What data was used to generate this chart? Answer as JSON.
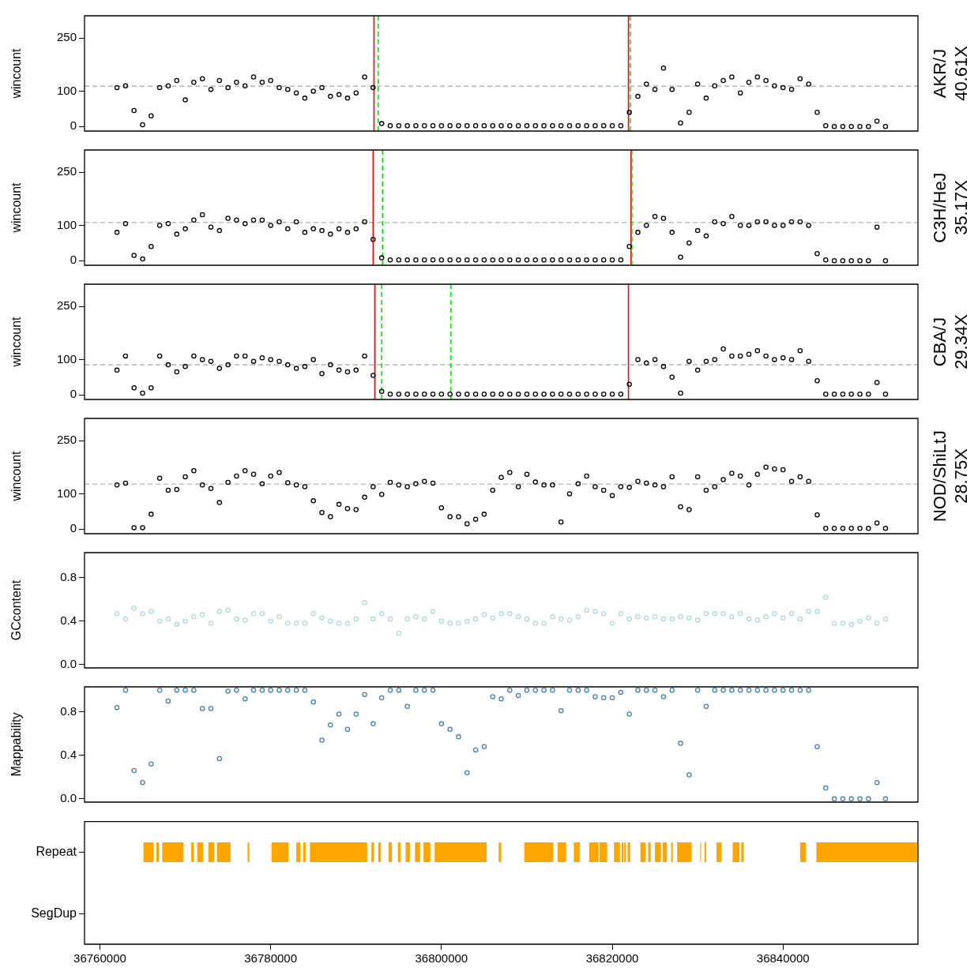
{
  "chart_data": [
    {
      "type": "scatter",
      "ylabel": "wincount",
      "y2label": "AKR/J\n40.61X",
      "color": "#000000",
      "marker": "circle",
      "tick_labels": "y",
      "xlim": [
        36758200,
        36855800
      ],
      "ylim": [
        -13,
        313
      ],
      "yticks": [
        0,
        100,
        250
      ],
      "x": [
        36762000,
        36763000,
        36764000,
        36765000,
        36766000,
        36767000,
        36768000,
        36769000,
        36770000,
        36771000,
        36772000,
        36773000,
        36774000,
        36775000,
        36776000,
        36777000,
        36778000,
        36779000,
        36780000,
        36781000,
        36782000,
        36783000,
        36784000,
        36785000,
        36786000,
        36787000,
        36788000,
        36789000,
        36790000,
        36791000,
        36792000,
        36793000,
        36794000,
        36795000,
        36796000,
        36797000,
        36798000,
        36799000,
        36800000,
        36801000,
        36802000,
        36803000,
        36804000,
        36805000,
        36806000,
        36807000,
        36808000,
        36809000,
        36810000,
        36811000,
        36812000,
        36813000,
        36814000,
        36815000,
        36816000,
        36817000,
        36818000,
        36819000,
        36820000,
        36821000,
        36822000,
        36823000,
        36824000,
        36825000,
        36826000,
        36827000,
        36828000,
        36829000,
        36830000,
        36831000,
        36832000,
        36833000,
        36834000,
        36835000,
        36836000,
        36837000,
        36838000,
        36839000,
        36840000,
        36841000,
        36842000,
        36843000,
        36844000,
        36845000,
        36846000,
        36847000,
        36848000,
        36849000,
        36850000,
        36851000,
        36852000
      ],
      "values": [
        110,
        115,
        45,
        5,
        30,
        110,
        115,
        130,
        75,
        125,
        135,
        105,
        130,
        110,
        125,
        115,
        140,
        125,
        130,
        110,
        105,
        95,
        80,
        100,
        110,
        85,
        90,
        80,
        95,
        140,
        110,
        8,
        2,
        2,
        2,
        2,
        2,
        2,
        2,
        2,
        2,
        2,
        2,
        2,
        2,
        2,
        2,
        2,
        2,
        2,
        2,
        2,
        2,
        2,
        2,
        2,
        2,
        2,
        2,
        2,
        40,
        85,
        120,
        105,
        165,
        105,
        10,
        40,
        120,
        80,
        115,
        130,
        140,
        95,
        125,
        140,
        130,
        115,
        110,
        105,
        135,
        120,
        40,
        2,
        0,
        0,
        0,
        0,
        0,
        15,
        0
      ],
      "ref_lines": [
        {
          "axis": "y",
          "value": 114,
          "color": "#bebebe",
          "line_style": "dashed"
        },
        {
          "axis": "x",
          "value": 36792100,
          "color": "#ff0000",
          "line_style": "solid"
        },
        {
          "axis": "x",
          "value": 36821900,
          "color": "#ff0000",
          "line_style": "solid"
        },
        {
          "axis": "x",
          "value": 36792600,
          "color": "#00ee00",
          "line_style": "dashed"
        },
        {
          "axis": "x",
          "value": 36822100,
          "color": "#00ee00",
          "line_style": "dashed"
        }
      ]
    },
    {
      "type": "scatter",
      "ylabel": "wincount",
      "y2label": "C3H/HeJ\n35.17X",
      "color": "#000000",
      "marker": "circle",
      "tick_labels": "y",
      "xlim": [
        36758200,
        36855800
      ],
      "ylim": [
        -13,
        313
      ],
      "yticks": [
        0,
        100,
        250
      ],
      "x": [
        36762000,
        36763000,
        36764000,
        36765000,
        36766000,
        36767000,
        36768000,
        36769000,
        36770000,
        36771000,
        36772000,
        36773000,
        36774000,
        36775000,
        36776000,
        36777000,
        36778000,
        36779000,
        36780000,
        36781000,
        36782000,
        36783000,
        36784000,
        36785000,
        36786000,
        36787000,
        36788000,
        36789000,
        36790000,
        36791000,
        36792000,
        36793000,
        36794000,
        36795000,
        36796000,
        36797000,
        36798000,
        36799000,
        36800000,
        36801000,
        36802000,
        36803000,
        36804000,
        36805000,
        36806000,
        36807000,
        36808000,
        36809000,
        36810000,
        36811000,
        36812000,
        36813000,
        36814000,
        36815000,
        36816000,
        36817000,
        36818000,
        36819000,
        36820000,
        36821000,
        36822000,
        36823000,
        36824000,
        36825000,
        36826000,
        36827000,
        36828000,
        36829000,
        36830000,
        36831000,
        36832000,
        36833000,
        36834000,
        36835000,
        36836000,
        36837000,
        36838000,
        36839000,
        36840000,
        36841000,
        36842000,
        36843000,
        36844000,
        36845000,
        36846000,
        36847000,
        36848000,
        36849000,
        36850000,
        36851000,
        36852000
      ],
      "values": [
        80,
        105,
        15,
        5,
        40,
        100,
        105,
        75,
        90,
        115,
        130,
        95,
        85,
        120,
        115,
        105,
        115,
        115,
        100,
        110,
        90,
        110,
        80,
        90,
        85,
        75,
        90,
        80,
        90,
        110,
        60,
        8,
        2,
        2,
        2,
        2,
        2,
        2,
        2,
        2,
        2,
        2,
        2,
        2,
        2,
        2,
        2,
        2,
        2,
        2,
        2,
        2,
        2,
        2,
        2,
        2,
        2,
        2,
        2,
        2,
        40,
        80,
        100,
        125,
        120,
        80,
        10,
        50,
        85,
        70,
        110,
        105,
        125,
        100,
        100,
        110,
        110,
        100,
        100,
        110,
        110,
        100,
        20,
        2,
        0,
        0,
        0,
        0,
        0,
        95,
        0
      ],
      "ref_lines": [
        {
          "axis": "y",
          "value": 108,
          "color": "#bebebe",
          "line_style": "dashed"
        },
        {
          "axis": "x",
          "value": 36792000,
          "color": "#ff0000",
          "line_style": "solid"
        },
        {
          "axis": "x",
          "value": 36822200,
          "color": "#ff0000",
          "line_style": "solid"
        },
        {
          "axis": "x",
          "value": 36793100,
          "color": "#00ee00",
          "line_style": "dashed"
        },
        {
          "axis": "x",
          "value": 36822300,
          "color": "#00ee00",
          "line_style": "dashed"
        }
      ]
    },
    {
      "type": "scatter",
      "ylabel": "wincount",
      "y2label": "CBA/J\n29.34X",
      "color": "#000000",
      "marker": "circle",
      "tick_labels": "y",
      "xlim": [
        36758200,
        36855800
      ],
      "ylim": [
        -13,
        313
      ],
      "yticks": [
        0,
        100,
        250
      ],
      "x": [
        36762000,
        36763000,
        36764000,
        36765000,
        36766000,
        36767000,
        36768000,
        36769000,
        36770000,
        36771000,
        36772000,
        36773000,
        36774000,
        36775000,
        36776000,
        36777000,
        36778000,
        36779000,
        36780000,
        36781000,
        36782000,
        36783000,
        36784000,
        36785000,
        36786000,
        36787000,
        36788000,
        36789000,
        36790000,
        36791000,
        36792000,
        36793000,
        36794000,
        36795000,
        36796000,
        36797000,
        36798000,
        36799000,
        36800000,
        36801000,
        36802000,
        36803000,
        36804000,
        36805000,
        36806000,
        36807000,
        36808000,
        36809000,
        36810000,
        36811000,
        36812000,
        36813000,
        36814000,
        36815000,
        36816000,
        36817000,
        36818000,
        36819000,
        36820000,
        36821000,
        36822000,
        36823000,
        36824000,
        36825000,
        36826000,
        36827000,
        36828000,
        36829000,
        36830000,
        36831000,
        36832000,
        36833000,
        36834000,
        36835000,
        36836000,
        36837000,
        36838000,
        36839000,
        36840000,
        36841000,
        36842000,
        36843000,
        36844000,
        36845000,
        36846000,
        36847000,
        36848000,
        36849000,
        36850000,
        36851000,
        36852000
      ],
      "values": [
        70,
        110,
        20,
        5,
        20,
        110,
        85,
        65,
        80,
        110,
        100,
        95,
        75,
        85,
        110,
        110,
        95,
        105,
        100,
        95,
        85,
        75,
        80,
        100,
        60,
        85,
        70,
        65,
        70,
        110,
        55,
        10,
        2,
        2,
        2,
        2,
        2,
        2,
        2,
        2,
        2,
        2,
        2,
        2,
        2,
        2,
        2,
        2,
        2,
        2,
        2,
        2,
        2,
        2,
        2,
        2,
        2,
        2,
        2,
        2,
        30,
        100,
        90,
        100,
        80,
        50,
        5,
        95,
        70,
        95,
        100,
        130,
        110,
        110,
        115,
        125,
        110,
        100,
        105,
        100,
        125,
        95,
        40,
        2,
        2,
        2,
        2,
        2,
        2,
        35,
        2
      ],
      "ref_lines": [
        {
          "axis": "y",
          "value": 85,
          "color": "#bebebe",
          "line_style": "dashed"
        },
        {
          "axis": "x",
          "value": 36792200,
          "color": "#ff0000",
          "line_style": "solid"
        },
        {
          "axis": "x",
          "value": 36821900,
          "color": "#ff0000",
          "line_style": "solid"
        },
        {
          "axis": "x",
          "value": 36793000,
          "color": "#00ee00",
          "line_style": "dashed"
        },
        {
          "axis": "x",
          "value": 36801100,
          "color": "#00ee00",
          "line_style": "dashed"
        }
      ]
    },
    {
      "type": "scatter",
      "ylabel": "wincount",
      "y2label": "NOD/ShiLtJ\n28.75X",
      "color": "#000000",
      "marker": "circle",
      "tick_labels": "y",
      "xlim": [
        36758200,
        36855800
      ],
      "ylim": [
        -13,
        313
      ],
      "yticks": [
        0,
        100,
        250
      ],
      "x": [
        36762000,
        36763000,
        36764000,
        36765000,
        36766000,
        36767000,
        36768000,
        36769000,
        36770000,
        36771000,
        36772000,
        36773000,
        36774000,
        36775000,
        36776000,
        36777000,
        36778000,
        36779000,
        36780000,
        36781000,
        36782000,
        36783000,
        36784000,
        36785000,
        36786000,
        36787000,
        36788000,
        36789000,
        36790000,
        36791000,
        36792000,
        36793000,
        36794000,
        36795000,
        36796000,
        36797000,
        36798000,
        36799000,
        36800000,
        36801000,
        36802000,
        36803000,
        36804000,
        36805000,
        36806000,
        36807000,
        36808000,
        36809000,
        36810000,
        36811000,
        36812000,
        36813000,
        36814000,
        36815000,
        36816000,
        36817000,
        36818000,
        36819000,
        36820000,
        36821000,
        36822000,
        36823000,
        36824000,
        36825000,
        36826000,
        36827000,
        36828000,
        36829000,
        36830000,
        36831000,
        36832000,
        36833000,
        36834000,
        36835000,
        36836000,
        36837000,
        36838000,
        36839000,
        36840000,
        36841000,
        36842000,
        36843000,
        36844000,
        36845000,
        36846000,
        36847000,
        36848000,
        36849000,
        36850000,
        36851000,
        36852000
      ],
      "values": [
        125,
        130,
        4,
        4,
        42,
        144,
        110,
        112,
        148,
        165,
        125,
        115,
        75,
        132,
        150,
        165,
        155,
        128,
        150,
        160,
        131,
        125,
        120,
        80,
        47,
        35,
        70,
        58,
        55,
        90,
        120,
        98,
        132,
        125,
        120,
        128,
        135,
        130,
        60,
        35,
        35,
        15,
        28,
        42,
        110,
        146,
        160,
        120,
        155,
        133,
        125,
        125,
        20,
        100,
        128,
        150,
        120,
        110,
        95,
        120,
        118,
        135,
        130,
        125,
        120,
        148,
        63,
        55,
        148,
        110,
        120,
        140,
        158,
        150,
        125,
        155,
        175,
        170,
        168,
        135,
        148,
        135,
        40,
        2,
        2,
        2,
        2,
        2,
        2,
        17,
        2
      ],
      "ref_lines": [
        {
          "axis": "y",
          "value": 127,
          "color": "#bebebe",
          "line_style": "dashed"
        }
      ]
    },
    {
      "type": "scatter",
      "ylabel": "GCcontent",
      "color": "#add8e6",
      "marker": "circle",
      "tick_labels": "y",
      "xlim": [
        36758200,
        36855800
      ],
      "ylim": [
        -0.03,
        1.03
      ],
      "yticks": [
        {
          "value": 0,
          "label": "0.0"
        },
        {
          "value": 0.4,
          "label": "0.4"
        },
        {
          "value": 0.8,
          "label": "0.8"
        }
      ],
      "x": [
        36762000,
        36763000,
        36764000,
        36765000,
        36766000,
        36767000,
        36768000,
        36769000,
        36770000,
        36771000,
        36772000,
        36773000,
        36774000,
        36775000,
        36776000,
        36777000,
        36778000,
        36779000,
        36780000,
        36781000,
        36782000,
        36783000,
        36784000,
        36785000,
        36786000,
        36787000,
        36788000,
        36789000,
        36790000,
        36791000,
        36792000,
        36793000,
        36794000,
        36795000,
        36796000,
        36797000,
        36798000,
        36799000,
        36800000,
        36801000,
        36802000,
        36803000,
        36804000,
        36805000,
        36806000,
        36807000,
        36808000,
        36809000,
        36810000,
        36811000,
        36812000,
        36813000,
        36814000,
        36815000,
        36816000,
        36817000,
        36818000,
        36819000,
        36820000,
        36821000,
        36822000,
        36823000,
        36824000,
        36825000,
        36826000,
        36827000,
        36828000,
        36829000,
        36830000,
        36831000,
        36832000,
        36833000,
        36834000,
        36835000,
        36836000,
        36837000,
        36838000,
        36839000,
        36840000,
        36841000,
        36842000,
        36843000,
        36844000,
        36845000,
        36846000,
        36847000,
        36848000,
        36849000,
        36850000,
        36851000,
        36852000
      ],
      "values": [
        0.47,
        0.42,
        0.52,
        0.47,
        0.49,
        0.4,
        0.42,
        0.37,
        0.4,
        0.44,
        0.46,
        0.38,
        0.49,
        0.5,
        0.42,
        0.41,
        0.47,
        0.47,
        0.4,
        0.44,
        0.38,
        0.38,
        0.38,
        0.47,
        0.43,
        0.4,
        0.38,
        0.38,
        0.42,
        0.57,
        0.42,
        0.47,
        0.42,
        0.29,
        0.42,
        0.44,
        0.42,
        0.49,
        0.4,
        0.38,
        0.38,
        0.4,
        0.42,
        0.46,
        0.43,
        0.47,
        0.47,
        0.44,
        0.42,
        0.38,
        0.38,
        0.44,
        0.42,
        0.41,
        0.44,
        0.5,
        0.49,
        0.47,
        0.38,
        0.47,
        0.42,
        0.44,
        0.43,
        0.44,
        0.42,
        0.42,
        0.44,
        0.43,
        0.41,
        0.47,
        0.47,
        0.47,
        0.44,
        0.47,
        0.42,
        0.41,
        0.44,
        0.47,
        0.43,
        0.47,
        0.42,
        0.49,
        0.49,
        0.62,
        0.38,
        0.38,
        0.37,
        0.4,
        0.43,
        0.38,
        0.42
      ]
    },
    {
      "type": "scatter",
      "ylabel": "Mappability",
      "color": "#4682b4",
      "marker": "circle",
      "tick_labels": "y",
      "xlim": [
        36758200,
        36855800
      ],
      "ylim": [
        -0.03,
        1.03
      ],
      "yticks": [
        {
          "value": 0,
          "label": "0.0"
        },
        {
          "value": 0.4,
          "label": "0.4"
        },
        {
          "value": 0.8,
          "label": "0.8"
        }
      ],
      "x": [
        36762000,
        36763000,
        36764000,
        36765000,
        36766000,
        36767000,
        36768000,
        36769000,
        36770000,
        36771000,
        36772000,
        36773000,
        36774000,
        36775000,
        36776000,
        36777000,
        36778000,
        36779000,
        36780000,
        36781000,
        36782000,
        36783000,
        36784000,
        36785000,
        36786000,
        36787000,
        36788000,
        36789000,
        36790000,
        36791000,
        36792000,
        36793000,
        36794000,
        36795000,
        36796000,
        36797000,
        36798000,
        36799000,
        36800000,
        36801000,
        36802000,
        36803000,
        36804000,
        36805000,
        36806000,
        36807000,
        36808000,
        36809000,
        36810000,
        36811000,
        36812000,
        36813000,
        36814000,
        36815000,
        36816000,
        36817000,
        36818000,
        36819000,
        36820000,
        36821000,
        36822000,
        36823000,
        36824000,
        36825000,
        36826000,
        36827000,
        36828000,
        36829000,
        36830000,
        36831000,
        36832000,
        36833000,
        36834000,
        36835000,
        36836000,
        36837000,
        36838000,
        36839000,
        36840000,
        36841000,
        36842000,
        36843000,
        36844000,
        36845000,
        36846000,
        36847000,
        36848000,
        36849000,
        36850000,
        36851000,
        36852000
      ],
      "values": [
        0.84,
        1.0,
        0.26,
        0.15,
        0.32,
        1.0,
        0.9,
        1.0,
        1.0,
        1.0,
        0.83,
        0.83,
        0.37,
        0.99,
        1.0,
        0.92,
        1.0,
        1.0,
        1.0,
        1.0,
        1.0,
        1.0,
        1.0,
        0.89,
        0.54,
        0.68,
        0.78,
        0.64,
        0.78,
        0.96,
        0.69,
        0.93,
        1.0,
        1.0,
        0.85,
        1.0,
        1.0,
        1.0,
        0.69,
        0.64,
        0.57,
        0.24,
        0.45,
        0.48,
        0.94,
        0.92,
        1.0,
        0.95,
        1.0,
        1.0,
        1.0,
        1.0,
        0.81,
        1.0,
        1.0,
        1.0,
        0.94,
        0.93,
        0.93,
        0.98,
        0.78,
        1.0,
        1.0,
        1.0,
        0.94,
        1.0,
        0.51,
        0.22,
        1.0,
        0.85,
        1.0,
        1.0,
        1.0,
        1.0,
        1.0,
        1.0,
        1.0,
        1.0,
        1.0,
        1.0,
        1.0,
        1.0,
        0.48,
        0.1,
        0.0,
        0.0,
        0.0,
        0.0,
        0.0,
        0.15,
        0.0
      ]
    },
    {
      "type": "bar",
      "orientation": "horizontal",
      "categories": [
        "Repeat",
        "SegDup"
      ],
      "xlim": [
        36758200,
        36855800
      ],
      "xticks": [
        36760000,
        36780000,
        36800000,
        36820000,
        36840000
      ],
      "series": [
        {
          "color": "#ffa500",
          "values": [
            1200,
            null
          ],
          "base": [
            36765100,
            null
          ]
        },
        {
          "color": "#ffa500",
          "values": [
            300,
            null
          ],
          "base": [
            36766600,
            null
          ]
        },
        {
          "color": "#ffa500",
          "values": [
            2500,
            null
          ],
          "base": [
            36767300,
            null
          ]
        },
        {
          "color": "#ffa500",
          "values": [
            300,
            null
          ],
          "base": [
            36770700,
            null
          ]
        },
        {
          "color": "#ffa500",
          "values": [
            700,
            null
          ],
          "base": [
            36771400,
            null
          ]
        },
        {
          "color": "#ffa500",
          "values": [
            700,
            null
          ],
          "base": [
            36772700,
            null
          ]
        },
        {
          "color": "#ffa500",
          "values": [
            1600,
            null
          ],
          "base": [
            36773700,
            null
          ]
        },
        {
          "color": "#ffa500",
          "values": [
            200,
            null
          ],
          "base": [
            36777300,
            null
          ]
        },
        {
          "color": "#ffa500",
          "values": [
            2000,
            null
          ],
          "base": [
            36780100,
            null
          ]
        },
        {
          "color": "#ffa500",
          "values": [
            500,
            null
          ],
          "base": [
            36783000,
            null
          ]
        },
        {
          "color": "#ffa500",
          "values": [
            300,
            null
          ],
          "base": [
            36783800,
            null
          ]
        },
        {
          "color": "#ffa500",
          "values": [
            6700,
            null
          ],
          "base": [
            36784600,
            null
          ]
        },
        {
          "color": "#ffa500",
          "values": [
            300,
            null
          ],
          "base": [
            36791800,
            null
          ]
        },
        {
          "color": "#ffa500",
          "values": [
            300,
            null
          ],
          "base": [
            36792600,
            null
          ]
        },
        {
          "color": "#ffa500",
          "values": [
            400,
            null
          ],
          "base": [
            36793800,
            null
          ]
        },
        {
          "color": "#ffa500",
          "values": [
            300,
            null
          ],
          "base": [
            36794900,
            null
          ]
        },
        {
          "color": "#ffa500",
          "values": [
            500,
            null
          ],
          "base": [
            36795800,
            null
          ]
        },
        {
          "color": "#ffa500",
          "values": [
            600,
            null
          ],
          "base": [
            36796900,
            null
          ]
        },
        {
          "color": "#ffa500",
          "values": [
            800,
            null
          ],
          "base": [
            36797900,
            null
          ]
        },
        {
          "color": "#ffa500",
          "values": [
            6100,
            null
          ],
          "base": [
            36799200,
            null
          ]
        },
        {
          "color": "#ffa500",
          "values": [
            300,
            null
          ],
          "base": [
            36806700,
            null
          ]
        },
        {
          "color": "#ffa500",
          "values": [
            3400,
            null
          ],
          "base": [
            36809700,
            null
          ]
        },
        {
          "color": "#ffa500",
          "values": [
            1000,
            null
          ],
          "base": [
            36813600,
            null
          ]
        },
        {
          "color": "#ffa500",
          "values": [
            700,
            null
          ],
          "base": [
            36815500,
            null
          ]
        },
        {
          "color": "#ffa500",
          "values": [
            1100,
            null
          ],
          "base": [
            36817300,
            null
          ]
        },
        {
          "color": "#ffa500",
          "values": [
            900,
            null
          ],
          "base": [
            36818500,
            null
          ]
        },
        {
          "color": "#ffa500",
          "values": [
            700,
            null
          ],
          "base": [
            36820200,
            null
          ]
        },
        {
          "color": "#ffa500",
          "values": [
            200,
            null
          ],
          "base": [
            36821100,
            null
          ]
        },
        {
          "color": "#ffa500",
          "values": [
            200,
            null
          ],
          "base": [
            36821400,
            null
          ]
        },
        {
          "color": "#ffa500",
          "values": [
            300,
            null
          ],
          "base": [
            36821800,
            null
          ]
        },
        {
          "color": "#ffa500",
          "values": [
            600,
            null
          ],
          "base": [
            36823300,
            null
          ]
        },
        {
          "color": "#ffa500",
          "values": [
            300,
            null
          ],
          "base": [
            36824200,
            null
          ]
        },
        {
          "color": "#ffa500",
          "values": [
            700,
            null
          ],
          "base": [
            36825000,
            null
          ]
        },
        {
          "color": "#ffa500",
          "values": [
            500,
            null
          ],
          "base": [
            36825900,
            null
          ]
        },
        {
          "color": "#ffa500",
          "values": [
            200,
            null
          ],
          "base": [
            36826900,
            null
          ]
        },
        {
          "color": "#ffa500",
          "values": [
            1700,
            null
          ],
          "base": [
            36827600,
            null
          ]
        },
        {
          "color": "#ffa500",
          "values": [
            100,
            null
          ],
          "base": [
            36830300,
            null
          ]
        },
        {
          "color": "#ffa500",
          "values": [
            200,
            null
          ],
          "base": [
            36830800,
            null
          ]
        },
        {
          "color": "#ffa500",
          "values": [
            600,
            null
          ],
          "base": [
            36832200,
            null
          ]
        },
        {
          "color": "#ffa500",
          "values": [
            800,
            null
          ],
          "base": [
            36834100,
            null
          ]
        },
        {
          "color": "#ffa500",
          "values": [
            300,
            null
          ],
          "base": [
            36835100,
            null
          ]
        },
        {
          "color": "#ffa500",
          "values": [
            700,
            null
          ],
          "base": [
            36842000,
            null
          ]
        },
        {
          "color": "#ffa500",
          "values": [
            11800,
            null
          ],
          "base": [
            36843900,
            null
          ]
        }
      ]
    }
  ]
}
